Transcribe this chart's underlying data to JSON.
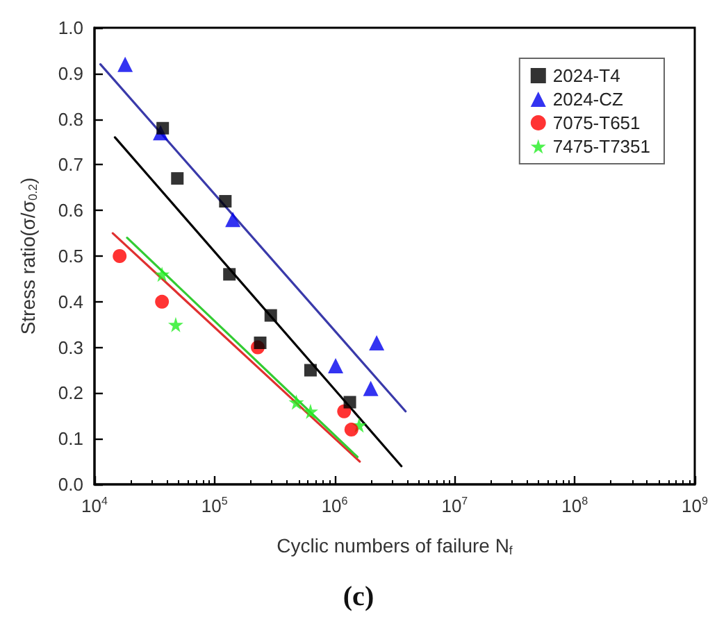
{
  "chart_data": {
    "type": "scatter",
    "xlabel": "Cyclic numbers of failure N$_{f}$",
    "ylabel": "Stress ratio(σ/σ$_{0.2}$)",
    "annotations": [
      "(c)"
    ],
    "log": "x",
    "xlim": [
      10000,
      1000000000
    ],
    "xticks": [
      {
        "value": 10000,
        "label": "10$^{4}$"
      },
      {
        "value": 100000,
        "label": "10$^{5}$"
      },
      {
        "value": 1000000,
        "label": "10$^{6}$"
      },
      {
        "value": 10000000,
        "label": "10$^{7}$"
      },
      {
        "value": 100000000,
        "label": "10$^{8}$"
      },
      {
        "value": 1000000000,
        "label": "10$^{9}$"
      }
    ],
    "ylim": [
      0,
      1
    ],
    "yticks": [
      {
        "value": 0,
        "label": "0.0"
      },
      0.1,
      0.2,
      0.3,
      0.4,
      0.5,
      0.6,
      0.7,
      0.8,
      0.9,
      {
        "value": 1,
        "label": "1.0"
      }
    ],
    "grid": false,
    "legend": "top right",
    "series": [
      {
        "name": "2024-T4",
        "color": "#000000",
        "marker": "square",
        "x": [
          37000,
          49000,
          123000,
          133000,
          240000,
          294000,
          630000,
          1340000
        ],
        "values": [
          0.78,
          0.67,
          0.62,
          0.46,
          0.31,
          0.37,
          0.25,
          0.18
        ]
      },
      {
        "name": "2024-CZ",
        "color": "#0000ee",
        "marker": "triangle",
        "x": [
          18000,
          35500,
          142000,
          1020000,
          2000000,
          2240000
        ],
        "values": [
          0.92,
          0.77,
          0.58,
          0.26,
          0.21,
          0.31
        ]
      },
      {
        "name": "7075-T651",
        "color": "#ff0000",
        "marker": "circle",
        "x": [
          16200,
          36500,
          229000,
          1200000,
          1380000
        ],
        "values": [
          0.5,
          0.4,
          0.3,
          0.16,
          0.12
        ]
      },
      {
        "name": "7475-T7351",
        "color": "#22ee22",
        "marker": "star",
        "x": [
          36500,
          47500,
          480000,
          630000,
          1600000
        ],
        "values": [
          0.46,
          0.35,
          0.18,
          0.16,
          0.13
        ]
      },
      {
        "type": "line",
        "color": "#3a3aaa",
        "marker": "none",
        "line_style": "solid",
        "x": [
          11200,
          3900000
        ],
        "values": [
          0.92,
          0.16
        ]
      },
      {
        "type": "line",
        "color": "#000000",
        "marker": "none",
        "line_style": "solid",
        "x": [
          14800,
          3600000
        ],
        "values": [
          0.76,
          0.04
        ]
      },
      {
        "type": "line",
        "color": "#e03030",
        "marker": "none",
        "line_style": "solid",
        "x": [
          14200,
          1620000
        ],
        "values": [
          0.55,
          0.05
        ]
      },
      {
        "type": "line",
        "color": "#33cc33",
        "marker": "none",
        "line_style": "solid",
        "x": [
          18700,
          1550000
        ],
        "values": [
          0.54,
          0.06
        ]
      }
    ]
  }
}
